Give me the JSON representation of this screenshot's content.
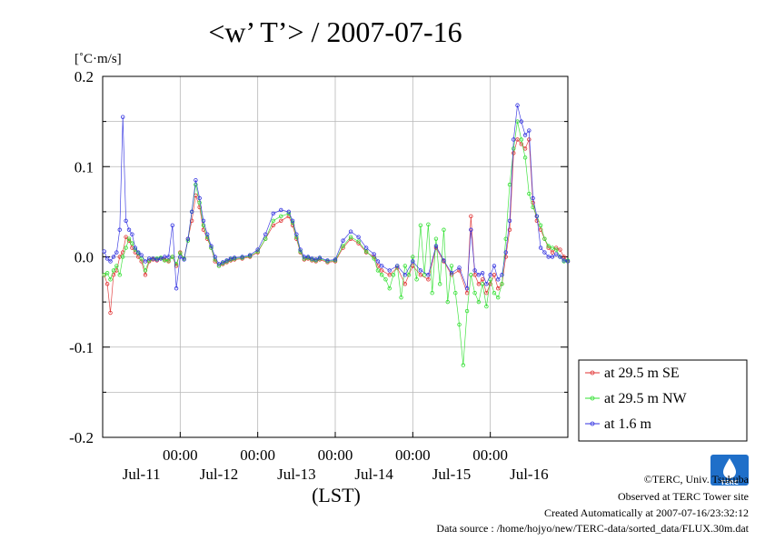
{
  "title": "<w’ T’> / 2007-07-16",
  "unit_label": "[˚C·m/s]",
  "xlabel": "(LST)",
  "colors": {
    "se": "#e03030",
    "nw": "#30e030",
    "low": "#3030e0"
  },
  "chart_data": {
    "type": "line",
    "title": "<w’ T’> / 2007-07-16",
    "ylabel": "[˚C·m/s]",
    "xlabel": "(LST)",
    "ylim": [
      -0.2,
      0.2
    ],
    "yticks": [
      0.2,
      0.1,
      0.0,
      -0.1,
      -0.2
    ],
    "ytick_labels": [
      "0.2",
      "0.1",
      "0.0",
      "-0.1",
      "-0.2"
    ],
    "xlim": [
      0,
      6
    ],
    "xtick_hours": [
      "00:00",
      "00:00",
      "00:00",
      "00:00",
      "00:00"
    ],
    "xtick_days": [
      "Jul-11",
      "Jul-12",
      "Jul-13",
      "Jul-14",
      "Jul-15",
      "Jul-16"
    ],
    "grid": true,
    "legend_position": "right",
    "series": [
      {
        "name": "at 29.5 m SE",
        "color": "#e03030",
        "x": [
          0.02,
          0.06,
          0.1,
          0.14,
          0.18,
          0.22,
          0.26,
          0.3,
          0.34,
          0.38,
          0.42,
          0.46,
          0.5,
          0.55,
          0.6,
          0.65,
          0.7,
          0.75,
          0.8,
          0.85,
          0.9,
          0.95,
          1.0,
          1.05,
          1.1,
          1.15,
          1.2,
          1.25,
          1.3,
          1.35,
          1.4,
          1.45,
          1.5,
          1.55,
          1.6,
          1.65,
          1.7,
          1.8,
          1.9,
          2.0,
          2.1,
          2.2,
          2.3,
          2.4,
          2.45,
          2.5,
          2.55,
          2.6,
          2.65,
          2.7,
          2.75,
          2.8,
          2.9,
          3.0,
          3.1,
          3.2,
          3.3,
          3.4,
          3.5,
          3.55,
          3.6,
          3.7,
          3.8,
          3.9,
          4.0,
          4.1,
          4.2,
          4.3,
          4.4,
          4.5,
          4.6,
          4.7,
          4.75,
          4.8,
          4.85,
          4.9,
          4.95,
          5.0,
          5.05,
          5.1,
          5.15,
          5.2,
          5.25,
          5.3,
          5.35,
          5.4,
          5.45,
          5.5,
          5.55,
          5.6,
          5.65,
          5.7,
          5.75,
          5.8,
          5.85,
          5.9,
          5.95,
          6.0
        ],
        "y": [
          -0.02,
          -0.03,
          -0.062,
          -0.02,
          -0.015,
          0.0,
          0.005,
          0.022,
          0.018,
          0.01,
          0.005,
          0.0,
          -0.005,
          -0.02,
          -0.005,
          -0.003,
          -0.004,
          -0.002,
          -0.003,
          -0.005,
          0.0,
          -0.01,
          0.005,
          -0.002,
          0.02,
          0.04,
          0.068,
          0.055,
          0.03,
          0.02,
          0.01,
          -0.005,
          -0.01,
          -0.008,
          -0.006,
          -0.004,
          -0.003,
          -0.002,
          0.0,
          0.005,
          0.02,
          0.035,
          0.04,
          0.045,
          0.035,
          0.02,
          0.005,
          -0.003,
          -0.002,
          -0.004,
          -0.005,
          -0.003,
          -0.006,
          -0.005,
          0.01,
          0.02,
          0.015,
          0.005,
          0.0,
          -0.01,
          -0.015,
          -0.02,
          -0.012,
          -0.03,
          -0.01,
          -0.02,
          -0.025,
          0.01,
          -0.005,
          -0.02,
          -0.015,
          -0.04,
          0.045,
          -0.02,
          -0.03,
          -0.025,
          -0.04,
          -0.03,
          -0.02,
          -0.035,
          -0.03,
          0.0,
          0.03,
          0.115,
          0.13,
          0.125,
          0.12,
          0.13,
          0.06,
          0.04,
          0.03,
          0.02,
          0.01,
          0.005,
          0.01,
          0.008,
          0.0,
          -0.005
        ]
      },
      {
        "name": "at 29.5 m NW",
        "color": "#30e030",
        "x": [
          0.02,
          0.06,
          0.1,
          0.14,
          0.18,
          0.22,
          0.26,
          0.3,
          0.34,
          0.38,
          0.42,
          0.46,
          0.5,
          0.55,
          0.6,
          0.65,
          0.7,
          0.75,
          0.8,
          0.85,
          0.9,
          0.95,
          1.0,
          1.05,
          1.1,
          1.15,
          1.2,
          1.25,
          1.3,
          1.35,
          1.4,
          1.45,
          1.5,
          1.55,
          1.6,
          1.65,
          1.7,
          1.8,
          1.9,
          2.0,
          2.1,
          2.2,
          2.3,
          2.4,
          2.45,
          2.5,
          2.55,
          2.6,
          2.65,
          2.7,
          2.75,
          2.8,
          2.9,
          3.0,
          3.1,
          3.2,
          3.3,
          3.4,
          3.5,
          3.55,
          3.6,
          3.65,
          3.7,
          3.75,
          3.8,
          3.85,
          3.9,
          3.95,
          4.0,
          4.05,
          4.1,
          4.15,
          4.2,
          4.25,
          4.3,
          4.35,
          4.4,
          4.45,
          4.5,
          4.55,
          4.6,
          4.65,
          4.7,
          4.75,
          4.8,
          4.85,
          4.9,
          4.95,
          5.0,
          5.05,
          5.1,
          5.15,
          5.2,
          5.25,
          5.3,
          5.35,
          5.4,
          5.45,
          5.5,
          5.55,
          5.6,
          5.65,
          5.7,
          5.75,
          5.8,
          5.85,
          5.9,
          5.95,
          6.0
        ],
        "y": [
          -0.02,
          -0.018,
          -0.025,
          -0.015,
          -0.01,
          -0.02,
          0.0,
          0.01,
          0.02,
          0.015,
          0.008,
          0.004,
          -0.002,
          -0.015,
          -0.004,
          -0.002,
          -0.002,
          -0.001,
          -0.004,
          -0.004,
          0.0,
          -0.008,
          0.004,
          -0.002,
          0.018,
          0.05,
          0.08,
          0.06,
          0.035,
          0.022,
          0.01,
          -0.003,
          -0.01,
          -0.007,
          -0.005,
          -0.003,
          -0.002,
          -0.001,
          0.001,
          0.006,
          0.02,
          0.04,
          0.045,
          0.048,
          0.038,
          0.022,
          0.006,
          -0.002,
          -0.001,
          -0.003,
          -0.004,
          -0.002,
          -0.005,
          -0.004,
          0.012,
          0.022,
          0.017,
          0.006,
          -0.002,
          -0.015,
          -0.02,
          -0.025,
          -0.035,
          -0.02,
          -0.01,
          -0.045,
          -0.01,
          -0.02,
          0.0,
          -0.025,
          0.035,
          -0.02,
          0.036,
          -0.04,
          0.02,
          -0.03,
          0.03,
          -0.05,
          -0.01,
          -0.04,
          -0.075,
          -0.12,
          -0.06,
          -0.02,
          -0.04,
          -0.05,
          -0.03,
          -0.055,
          -0.025,
          -0.04,
          -0.045,
          -0.03,
          0.02,
          0.08,
          0.12,
          0.15,
          0.13,
          0.11,
          0.07,
          0.055,
          0.045,
          0.035,
          0.02,
          0.012,
          0.01,
          0.008,
          0.0,
          -0.005,
          -0.004
        ]
      },
      {
        "name": "at 1.6 m",
        "color": "#3030e0",
        "x": [
          0.02,
          0.06,
          0.1,
          0.14,
          0.18,
          0.22,
          0.26,
          0.3,
          0.34,
          0.38,
          0.42,
          0.46,
          0.5,
          0.55,
          0.6,
          0.65,
          0.7,
          0.75,
          0.8,
          0.85,
          0.9,
          0.95,
          1.0,
          1.05,
          1.1,
          1.15,
          1.2,
          1.25,
          1.3,
          1.35,
          1.4,
          1.45,
          1.5,
          1.55,
          1.6,
          1.65,
          1.7,
          1.8,
          1.9,
          2.0,
          2.1,
          2.2,
          2.3,
          2.4,
          2.45,
          2.5,
          2.55,
          2.6,
          2.65,
          2.7,
          2.75,
          2.8,
          2.9,
          3.0,
          3.1,
          3.2,
          3.3,
          3.4,
          3.5,
          3.55,
          3.6,
          3.7,
          3.8,
          3.9,
          4.0,
          4.1,
          4.2,
          4.3,
          4.4,
          4.5,
          4.6,
          4.7,
          4.75,
          4.8,
          4.85,
          4.9,
          4.95,
          5.0,
          5.05,
          5.1,
          5.15,
          5.2,
          5.25,
          5.3,
          5.35,
          5.4,
          5.45,
          5.5,
          5.55,
          5.6,
          5.65,
          5.7,
          5.75,
          5.8,
          5.85,
          5.9,
          5.95,
          6.0
        ],
        "y": [
          0.006,
          -0.002,
          -0.005,
          0.0,
          0.005,
          0.03,
          0.155,
          0.04,
          0.03,
          0.025,
          0.01,
          0.005,
          0.002,
          -0.005,
          -0.002,
          -0.002,
          -0.003,
          -0.002,
          0.0,
          0.0,
          0.035,
          -0.035,
          0.0,
          -0.003,
          0.02,
          0.05,
          0.085,
          0.065,
          0.04,
          0.025,
          0.012,
          0.0,
          -0.008,
          -0.006,
          -0.004,
          -0.002,
          -0.001,
          0.0,
          0.002,
          0.008,
          0.025,
          0.048,
          0.052,
          0.05,
          0.04,
          0.025,
          0.008,
          0.0,
          0.0,
          -0.002,
          -0.003,
          -0.001,
          -0.004,
          -0.003,
          0.018,
          0.028,
          0.022,
          0.01,
          0.003,
          -0.005,
          -0.01,
          -0.015,
          -0.01,
          -0.02,
          -0.005,
          -0.015,
          -0.02,
          0.012,
          -0.004,
          -0.018,
          -0.012,
          -0.035,
          0.03,
          -0.015,
          -0.02,
          -0.018,
          -0.03,
          -0.02,
          -0.01,
          -0.025,
          -0.02,
          0.005,
          0.04,
          0.13,
          0.168,
          0.15,
          0.135,
          0.14,
          0.065,
          0.045,
          0.01,
          0.005,
          0.0,
          0.0,
          0.003,
          0.0,
          -0.004,
          -0.005
        ]
      }
    ]
  },
  "credits": {
    "copyright": "©TERC, Univ. Tsukuba",
    "observed": "Observed at TERC Tower site",
    "created": "Created Automatically at 2007-07-16/23:32:12",
    "source": "Data source : /home/hojyo/new/TERC-data/sorted_data/FLUX.30m.dat",
    "logo_text": "TERC"
  }
}
